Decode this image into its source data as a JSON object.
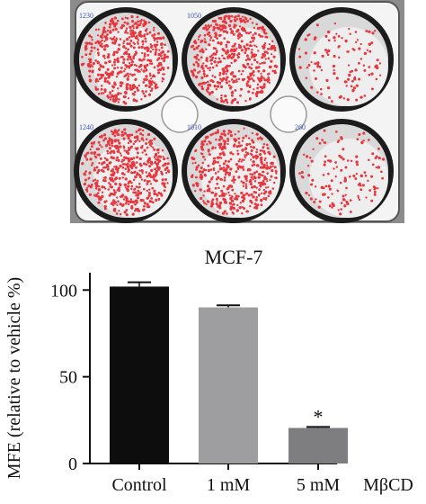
{
  "plate": {
    "well_counts": [
      "1230",
      "1050",
      "",
      "1240",
      "1010",
      "260"
    ],
    "colonies": [
      {
        "density": 1.0
      },
      {
        "density": 0.95
      },
      {
        "density": 0.22
      },
      {
        "density": 1.0
      },
      {
        "density": 0.9
      },
      {
        "density": 0.26
      }
    ],
    "colors": {
      "background": "#8c8c8c",
      "plate": "#f4f4f4",
      "well_rim": "#1c1c1c",
      "colony": "#e8363e",
      "count_text": "#3b55b8"
    }
  },
  "chart_data": {
    "type": "bar",
    "title": "MCF-7",
    "ylabel": "MFE (relative to vehicle %)",
    "xlabel": "",
    "categories": [
      "Control",
      "1 mM",
      "5 mM"
    ],
    "x_axis_suffix": "MβCD",
    "values": [
      102,
      90,
      20.5
    ],
    "errors": [
      2.5,
      1.2,
      0.6
    ],
    "bar_colors": [
      "#0d0d0d",
      "#9e9ea0",
      "#7e7e80"
    ],
    "significance": [
      "",
      "",
      "*"
    ],
    "ylim": [
      0,
      110
    ],
    "yticks": [
      0,
      50,
      100
    ],
    "grid": false
  }
}
